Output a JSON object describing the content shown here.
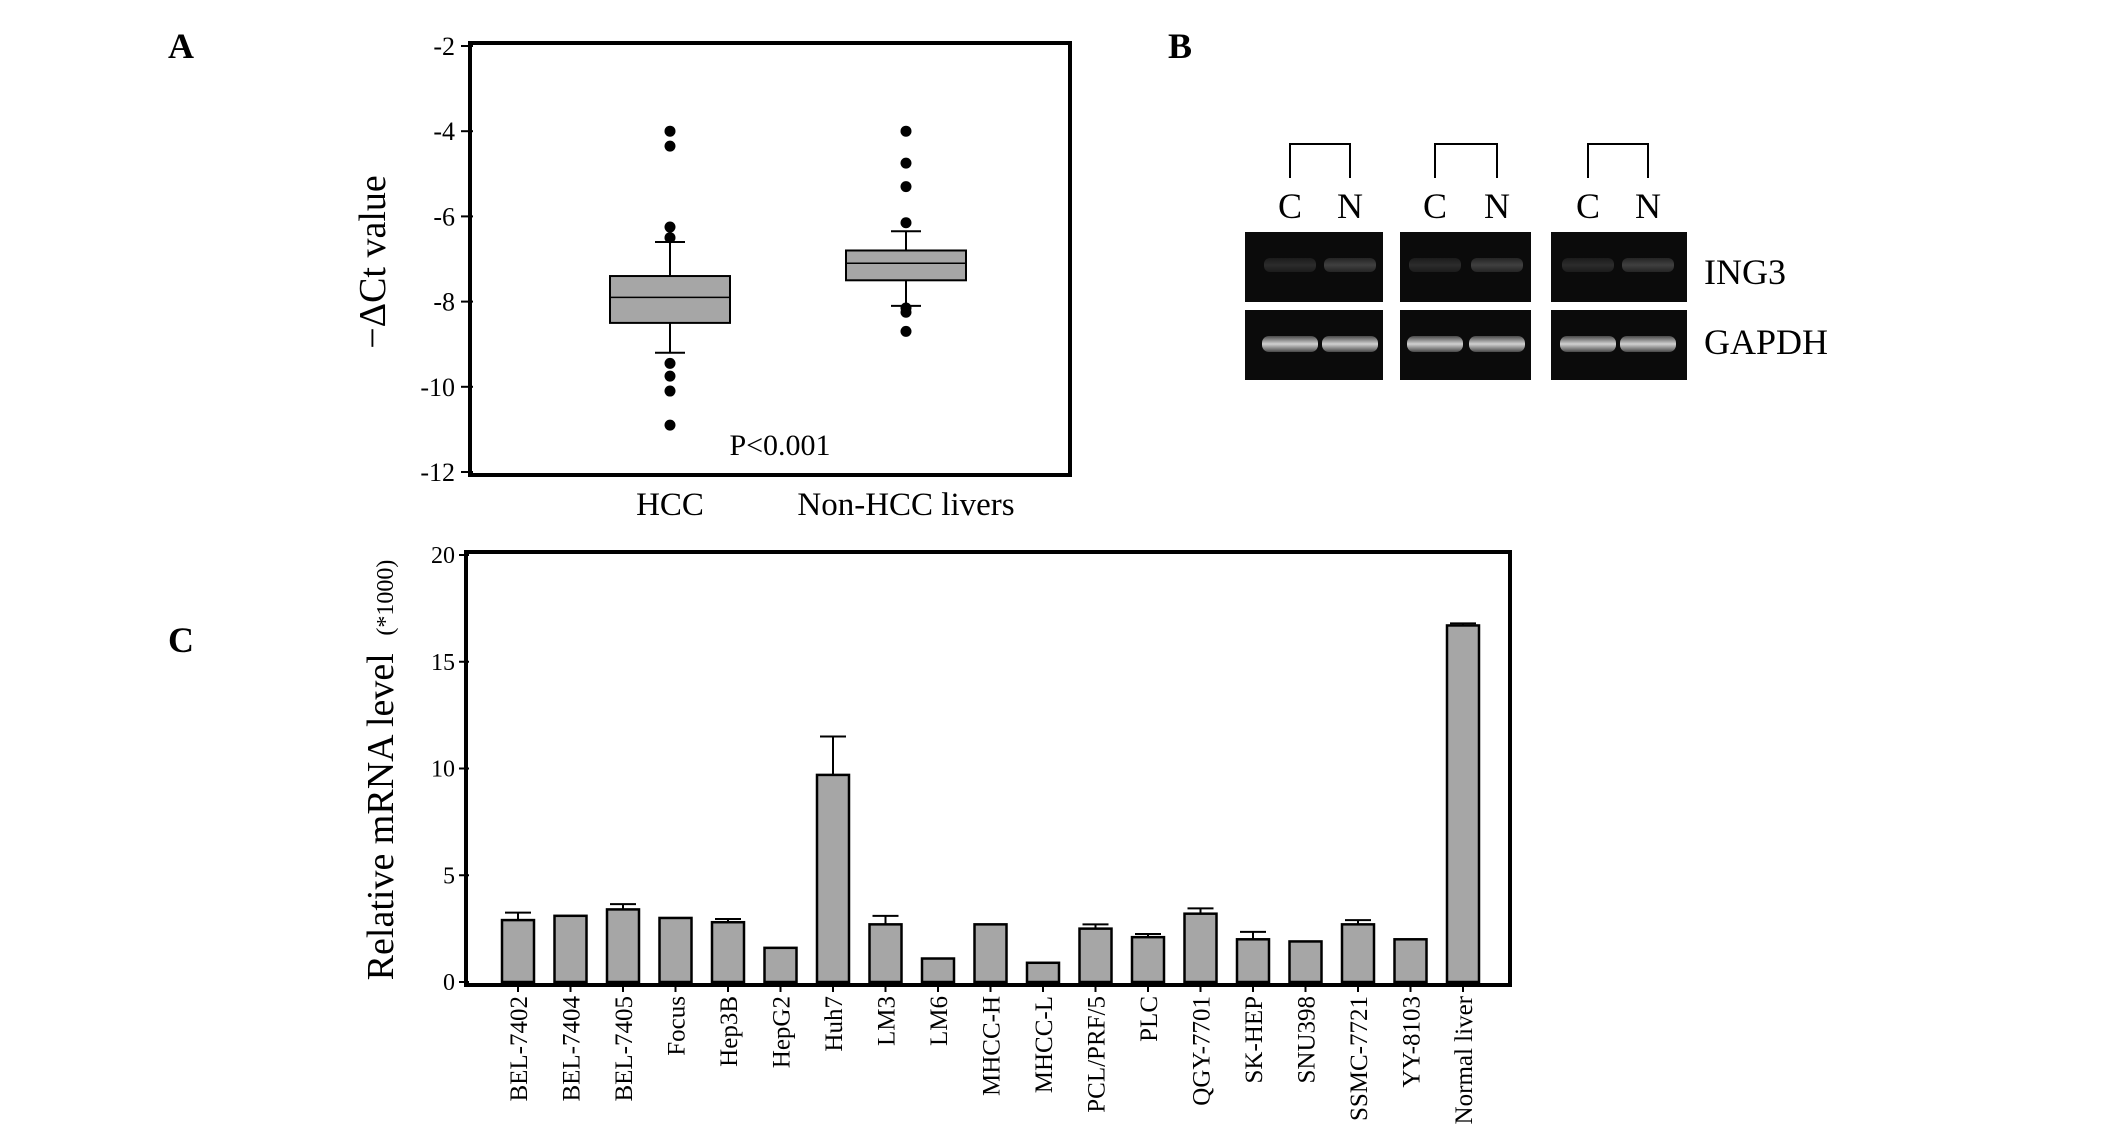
{
  "panels": {
    "a": "A",
    "b": "B",
    "c": "C"
  },
  "chart_data": [
    {
      "panel": "A",
      "type": "box",
      "ylabel": "−ΔCt value",
      "ylim": [
        -12,
        -2
      ],
      "yticks": [
        "-2",
        "-4",
        "-6",
        "-8",
        "-10",
        "-12"
      ],
      "categories": [
        "HCC",
        "Non-HCC livers"
      ],
      "annotation": "P<0.001",
      "grid": false,
      "box_color": "#a6a6a6",
      "boxes": [
        {
          "category": "HCC",
          "whisker_high": -6.6,
          "q3": -7.4,
          "median": -7.9,
          "q1": -8.5,
          "whisker_low": -9.2,
          "outliers": [
            -4.0,
            -4.35,
            -6.25,
            -6.5,
            -9.45,
            -9.75,
            -10.1,
            -10.9
          ]
        },
        {
          "category": "Non-HCC livers",
          "whisker_high": -6.35,
          "q3": -6.8,
          "median": -7.1,
          "q1": -7.5,
          "whisker_low": -8.1,
          "outliers": [
            -4.0,
            -4.75,
            -5.3,
            -6.15,
            -8.15,
            -8.25,
            -8.7
          ]
        }
      ]
    },
    {
      "panel": "C",
      "type": "bar",
      "ylabel": "Relative mRNA level",
      "ylabel_unit": "(*1000)",
      "ylim": [
        0,
        20
      ],
      "yticks": [
        "20",
        "15",
        "10",
        "5",
        "0"
      ],
      "grid": false,
      "bar_color": "#a6a6a6",
      "categories": [
        "BEL-7402",
        "BEL-7404",
        "BEL-7405",
        "Focus",
        "Hep3B",
        "HepG2",
        "Huh7",
        "LM3",
        "LM6",
        "MHCC-H",
        "MHCC-L",
        "PCL/PRF/5",
        "PLC",
        "QGY-7701",
        "SK-HEP",
        "SNU398",
        "SSMC-7721",
        "YY-8103",
        "Normal liver"
      ],
      "values": [
        2.9,
        3.1,
        3.4,
        3.0,
        2.8,
        1.6,
        9.7,
        2.7,
        1.1,
        2.7,
        0.9,
        2.5,
        2.1,
        3.2,
        2.0,
        1.9,
        2.7,
        2.0,
        16.7
      ],
      "errors": [
        0.35,
        0.0,
        0.25,
        0.0,
        0.15,
        0.0,
        1.8,
        0.4,
        0.0,
        0.0,
        0.0,
        0.2,
        0.15,
        0.25,
        0.35,
        0.0,
        0.2,
        0.0,
        0.1
      ]
    }
  ],
  "gel": {
    "panel": "B",
    "groups": [
      {
        "lanes": [
          "C",
          "N"
        ]
      },
      {
        "lanes": [
          "C",
          "N"
        ]
      },
      {
        "lanes": [
          "C",
          "N"
        ]
      }
    ],
    "rows": [
      "ING3",
      "GAPDH"
    ]
  }
}
